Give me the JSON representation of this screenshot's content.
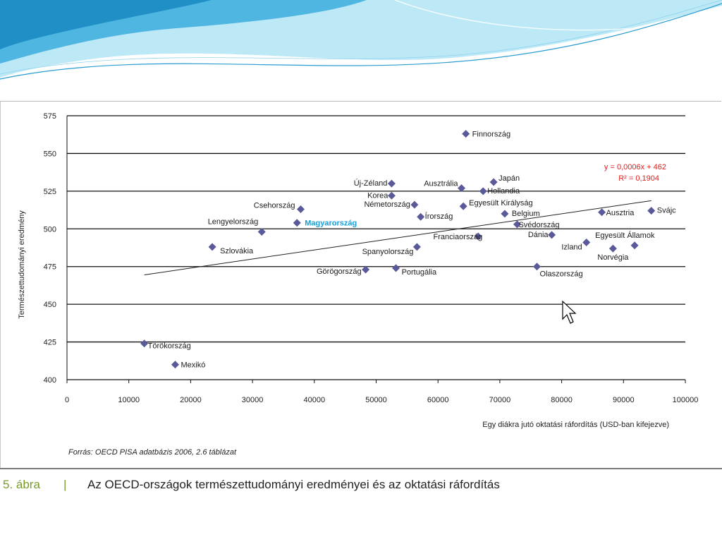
{
  "header": {
    "colors": {
      "wave_dark": "#1f8fc6",
      "wave_light": "#a8dff2"
    }
  },
  "source_note": "Forrás: OECD PISA adatbázis 2006, 2.6 táblázat",
  "caption": {
    "number": "5. ábra",
    "separator": "|",
    "text": "Az OECD-országok természettudományi eredményei és az oktatási ráfordítás"
  },
  "chart_data": {
    "type": "scatter",
    "title": "",
    "xlabel": "Egy diákra jutó oktatási ráfordítás (USD-ban kifejezve)",
    "ylabel": "Természettudományi eredmény",
    "xlim": [
      0,
      100000
    ],
    "ylim": [
      400,
      575
    ],
    "x_ticks": [
      0,
      10000,
      20000,
      30000,
      40000,
      50000,
      60000,
      70000,
      80000,
      90000,
      100000
    ],
    "y_ticks": [
      400,
      425,
      450,
      475,
      500,
      525,
      550,
      575
    ],
    "grid": "horizontal",
    "marker_color": "#5a5a9a",
    "highlight_color": "#1aa0d8",
    "points": [
      {
        "label": "Finnország",
        "x": 64500,
        "y": 563
      },
      {
        "label": "Új-Zéland",
        "x": 52500,
        "y": 530
      },
      {
        "label": "Korea",
        "x": 52500,
        "y": 522
      },
      {
        "label": "Ausztrália",
        "x": 63800,
        "y": 527
      },
      {
        "label": "Japán",
        "x": 69000,
        "y": 531
      },
      {
        "label": "Hollandia",
        "x": 67300,
        "y": 525
      },
      {
        "label": "Németország",
        "x": 56200,
        "y": 516
      },
      {
        "label": "Egyesült Királyság",
        "x": 64100,
        "y": 515
      },
      {
        "label": "Írország",
        "x": 57200,
        "y": 508
      },
      {
        "label": "Belgium",
        "x": 70800,
        "y": 510
      },
      {
        "label": "Svédország",
        "x": 72800,
        "y": 503
      },
      {
        "label": "Ausztria",
        "x": 86500,
        "y": 511
      },
      {
        "label": "Svájc",
        "x": 94500,
        "y": 512
      },
      {
        "label": "Csehország",
        "x": 37800,
        "y": 513
      },
      {
        "label": "Magyarország",
        "x": 37200,
        "y": 504,
        "highlight": true
      },
      {
        "label": "Lengyelország",
        "x": 31500,
        "y": 498
      },
      {
        "label": "Szlovákia",
        "x": 23500,
        "y": 488
      },
      {
        "label": "Franciaország",
        "x": 66500,
        "y": 495
      },
      {
        "label": "Dánia",
        "x": 78400,
        "y": 496
      },
      {
        "label": "Egyesült Államok",
        "x": 91800,
        "y": 489
      },
      {
        "label": "Izland",
        "x": 84000,
        "y": 491
      },
      {
        "label": "Norvégia",
        "x": 88300,
        "y": 487
      },
      {
        "label": "Spanyolország",
        "x": 56600,
        "y": 488
      },
      {
        "label": "Görögország",
        "x": 48300,
        "y": 473
      },
      {
        "label": "Portugália",
        "x": 53200,
        "y": 474
      },
      {
        "label": "Olaszország",
        "x": 76000,
        "y": 475
      },
      {
        "label": "Törökország",
        "x": 12500,
        "y": 424
      },
      {
        "label": "Mexikó",
        "x": 17500,
        "y": 410
      }
    ],
    "trendline": {
      "equation": "y = 0,0006x + 462",
      "r2": "R² = 0,1904",
      "color": "#e02020",
      "x_start": 12500,
      "x_end": 94500
    }
  }
}
